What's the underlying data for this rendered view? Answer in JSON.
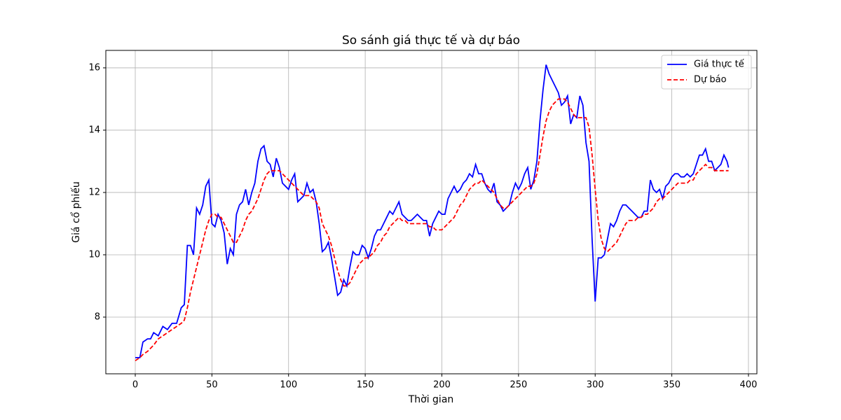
{
  "chart_data": {
    "type": "line",
    "title": "So sánh giá thực tế và dự báo",
    "xlabel": "Thời gian",
    "ylabel": "Giá cổ phiếu",
    "x": [
      0,
      3,
      5,
      8,
      10,
      12,
      15,
      18,
      21,
      24,
      27,
      30,
      32,
      34,
      36,
      38,
      40,
      42,
      44,
      46,
      48,
      50,
      52,
      54,
      56,
      58,
      60,
      62,
      64,
      66,
      68,
      70,
      72,
      74,
      76,
      78,
      80,
      82,
      84,
      86,
      88,
      90,
      92,
      94,
      96,
      98,
      100,
      102,
      104,
      106,
      108,
      110,
      112,
      114,
      116,
      118,
      120,
      122,
      124,
      126,
      128,
      130,
      132,
      134,
      136,
      138,
      140,
      142,
      144,
      146,
      148,
      150,
      152,
      154,
      156,
      158,
      160,
      162,
      164,
      166,
      168,
      170,
      172,
      174,
      176,
      178,
      180,
      182,
      184,
      186,
      188,
      190,
      192,
      194,
      196,
      198,
      200,
      202,
      204,
      206,
      208,
      210,
      212,
      214,
      216,
      218,
      220,
      222,
      224,
      226,
      228,
      230,
      232,
      234,
      236,
      238,
      240,
      242,
      244,
      246,
      248,
      250,
      252,
      254,
      256,
      258,
      260,
      262,
      264,
      266,
      268,
      270,
      272,
      274,
      276,
      278,
      280,
      282,
      284,
      286,
      288,
      290,
      292,
      294,
      296,
      298,
      300,
      302,
      304,
      306,
      308,
      310,
      312,
      314,
      316,
      318,
      320,
      322,
      324,
      326,
      328,
      330,
      332,
      334,
      336,
      338,
      340,
      342,
      344,
      346,
      348,
      350,
      352,
      354,
      356,
      358,
      360,
      362,
      364,
      366,
      368,
      370,
      372,
      374,
      376,
      378,
      380,
      382,
      384,
      386,
      387
    ],
    "series": [
      {
        "name": "Giá thực tế",
        "color": "#0000ff",
        "style": "solid",
        "values": [
          6.7,
          6.7,
          7.2,
          7.3,
          7.3,
          7.5,
          7.4,
          7.7,
          7.6,
          7.8,
          7.8,
          8.3,
          8.4,
          10.3,
          10.3,
          10.0,
          11.5,
          11.3,
          11.6,
          12.2,
          12.4,
          11.0,
          10.9,
          11.3,
          11.1,
          10.7,
          9.7,
          10.2,
          10.0,
          11.3,
          11.6,
          11.7,
          12.1,
          11.6,
          12.0,
          12.3,
          13.0,
          13.4,
          13.5,
          13.0,
          12.9,
          12.5,
          13.1,
          12.8,
          12.3,
          12.2,
          12.1,
          12.4,
          12.6,
          11.7,
          11.8,
          11.9,
          12.3,
          12.0,
          12.1,
          11.7,
          11.0,
          10.1,
          10.2,
          10.4,
          9.9,
          9.3,
          8.7,
          8.8,
          9.2,
          9.0,
          9.6,
          10.1,
          10.0,
          10.0,
          10.3,
          10.2,
          9.9,
          10.2,
          10.6,
          10.8,
          10.8,
          11.0,
          11.2,
          11.4,
          11.3,
          11.5,
          11.7,
          11.3,
          11.2,
          11.1,
          11.1,
          11.2,
          11.3,
          11.2,
          11.1,
          11.1,
          10.6,
          11.0,
          11.2,
          11.4,
          11.3,
          11.3,
          11.8,
          12.0,
          12.2,
          12.0,
          12.1,
          12.3,
          12.4,
          12.6,
          12.5,
          12.9,
          12.6,
          12.6,
          12.3,
          12.1,
          12.0,
          12.3,
          11.7,
          11.6,
          11.4,
          11.5,
          11.6,
          12.0,
          12.3,
          12.1,
          12.3,
          12.6,
          12.8,
          12.1,
          12.4,
          13.0,
          14.3,
          15.3,
          16.1,
          15.8,
          15.6,
          15.4,
          15.2,
          14.8,
          14.9,
          15.1,
          14.2,
          14.5,
          14.4,
          15.1,
          14.8,
          13.6,
          13.0,
          10.5,
          8.5,
          9.9,
          9.9,
          10.0,
          10.5,
          11.0,
          10.9,
          11.1,
          11.4,
          11.6,
          11.6,
          11.5,
          11.4,
          11.3,
          11.2,
          11.2,
          11.4,
          11.4,
          12.4,
          12.1,
          12.0,
          12.1,
          11.8,
          12.2,
          12.3,
          12.5,
          12.6,
          12.6,
          12.5,
          12.5,
          12.6,
          12.5,
          12.6,
          12.9,
          13.2,
          13.2,
          13.4,
          13.0,
          13.0,
          12.7,
          12.8,
          12.9,
          13.2,
          13.0,
          12.8
        ]
      },
      {
        "name": "Dự báo",
        "color": "#ff0000",
        "style": "dashed",
        "values": [
          6.6,
          6.7,
          6.8,
          6.9,
          7.0,
          7.1,
          7.3,
          7.4,
          7.5,
          7.6,
          7.7,
          7.8,
          7.9,
          8.3,
          8.8,
          9.2,
          9.6,
          10.0,
          10.4,
          10.8,
          11.1,
          11.3,
          11.3,
          11.2,
          11.2,
          11.0,
          10.8,
          10.6,
          10.4,
          10.4,
          10.6,
          10.8,
          11.1,
          11.3,
          11.4,
          11.6,
          11.8,
          12.1,
          12.4,
          12.6,
          12.7,
          12.7,
          12.7,
          12.7,
          12.6,
          12.5,
          12.4,
          12.3,
          12.2,
          12.1,
          12.0,
          11.9,
          11.9,
          11.9,
          11.8,
          11.7,
          11.5,
          11.0,
          10.8,
          10.6,
          10.3,
          9.9,
          9.5,
          9.2,
          9.0,
          9.0,
          9.1,
          9.3,
          9.5,
          9.7,
          9.8,
          9.9,
          9.9,
          10.0,
          10.1,
          10.3,
          10.4,
          10.6,
          10.7,
          10.9,
          11.0,
          11.1,
          11.2,
          11.1,
          11.1,
          11.0,
          11.0,
          11.0,
          11.0,
          11.0,
          11.0,
          11.0,
          10.9,
          10.9,
          10.8,
          10.8,
          10.8,
          10.9,
          11.0,
          11.1,
          11.2,
          11.4,
          11.6,
          11.7,
          11.9,
          12.1,
          12.2,
          12.3,
          12.3,
          12.4,
          12.3,
          12.2,
          12.1,
          12.0,
          11.8,
          11.6,
          11.5,
          11.5,
          11.6,
          11.7,
          11.8,
          11.9,
          12.0,
          12.1,
          12.2,
          12.2,
          12.3,
          12.6,
          13.2,
          13.8,
          14.3,
          14.6,
          14.8,
          14.9,
          15.0,
          15.0,
          15.0,
          14.9,
          14.7,
          14.5,
          14.4,
          14.4,
          14.4,
          14.4,
          14.1,
          13.2,
          12.1,
          11.1,
          10.5,
          10.2,
          10.1,
          10.2,
          10.3,
          10.4,
          10.6,
          10.8,
          11.0,
          11.1,
          11.1,
          11.1,
          11.2,
          11.2,
          11.3,
          11.3,
          11.4,
          11.5,
          11.7,
          11.8,
          11.8,
          11.9,
          12.0,
          12.1,
          12.2,
          12.3,
          12.3,
          12.3,
          12.3,
          12.4,
          12.4,
          12.6,
          12.7,
          12.8,
          12.9,
          12.8,
          12.8,
          12.7,
          12.7,
          12.7,
          12.7,
          12.7,
          12.7
        ]
      }
    ],
    "xlim": [
      -19.2,
      405.5
    ],
    "ylim": [
      6.18,
      16.56
    ],
    "xticks": [
      0,
      50,
      100,
      150,
      200,
      250,
      300,
      350,
      400
    ],
    "yticks": [
      8,
      10,
      12,
      14,
      16
    ],
    "grid": true,
    "legend": "upper right"
  }
}
